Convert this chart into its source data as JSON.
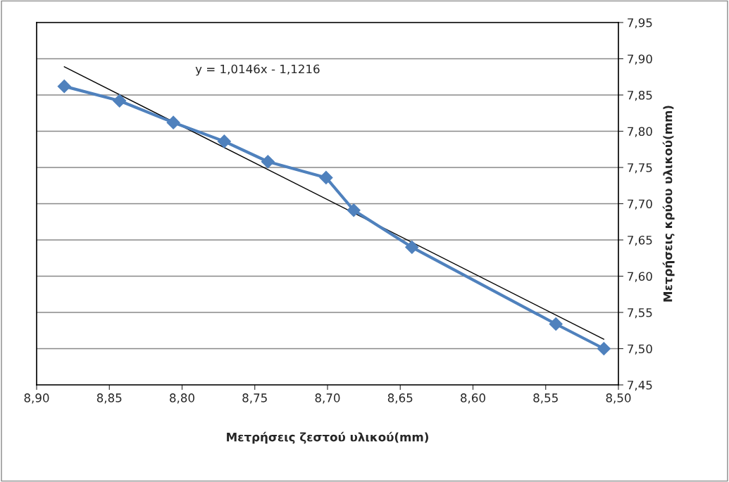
{
  "chart_data": {
    "type": "line",
    "xlabel": "Μετρήσεις ζεστού υλικού(mm)",
    "ylabel": "Μετρήσεις κρύου υλικού(mm)",
    "annotations": [
      "y = 1,0146x - 1,1216"
    ],
    "series": [
      {
        "color": "#4f81bd",
        "marker": "diamond",
        "x": [
          8.881,
          8.843,
          8.806,
          8.771,
          8.741,
          8.701,
          8.682,
          8.642,
          8.543,
          8.51
        ],
        "values": [
          7.862,
          7.842,
          7.812,
          7.786,
          7.758,
          7.736,
          7.691,
          7.64,
          7.534,
          7.5
        ]
      },
      {
        "type": "line",
        "color": "#000000",
        "marker": "none",
        "x": [
          8.881,
          8.51
        ],
        "values": [
          7.889,
          7.513
        ]
      }
    ],
    "xlim": [
      8.9,
      8.5
    ],
    "xticks": [
      {
        "value": 8.9,
        "label": "8,90"
      },
      {
        "value": 8.85,
        "label": "8,85"
      },
      {
        "value": 8.8,
        "label": "8,80"
      },
      {
        "value": 8.75,
        "label": "8,75"
      },
      {
        "value": 8.7,
        "label": "8,70"
      },
      {
        "value": 8.65,
        "label": "8,65"
      },
      {
        "value": 8.6,
        "label": "8,60"
      },
      {
        "value": 8.55,
        "label": "8,55"
      },
      {
        "value": 8.5,
        "label": "8,50"
      }
    ],
    "ylim": [
      7.45,
      7.95
    ],
    "yticks": [
      {
        "value": 7.45,
        "label": "7,45"
      },
      {
        "value": 7.5,
        "label": "7,50"
      },
      {
        "value": 7.55,
        "label": "7,55"
      },
      {
        "value": 7.6,
        "label": "7,60"
      },
      {
        "value": 7.65,
        "label": "7,65"
      },
      {
        "value": 7.7,
        "label": "7,70"
      },
      {
        "value": 7.75,
        "label": "7,75"
      },
      {
        "value": 7.8,
        "label": "7,80"
      },
      {
        "value": 7.85,
        "label": "7,85"
      },
      {
        "value": 7.9,
        "label": "7,90"
      },
      {
        "value": 7.95,
        "label": "7,95"
      }
    ],
    "grid": "y",
    "legend": false
  }
}
